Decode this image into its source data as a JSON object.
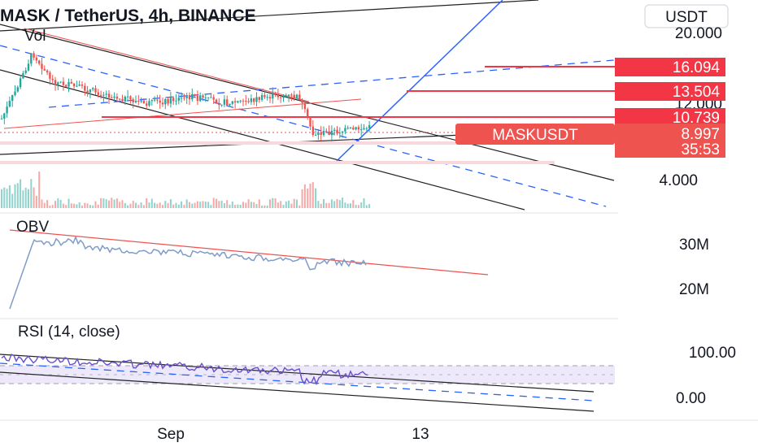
{
  "chart_data": {
    "type": "candlestick",
    "title": "MASK / TetherUS, 4h, BINANCE",
    "volume_label": "Vol",
    "currency_label": "USDT",
    "symbol_label": "MASKUSDT",
    "last_price": "8.997",
    "countdown": "35:53",
    "price_ticks": [
      "20.000",
      "12.000",
      "4.000"
    ],
    "x_ticks": [
      "Sep",
      "13"
    ],
    "horizontal_levels": [
      {
        "value": "16.094",
        "color": "#f23645"
      },
      {
        "value": "13.504",
        "color": "#f23645"
      },
      {
        "value": "10.739",
        "color": "#f23645"
      }
    ],
    "obv": {
      "label": "OBV",
      "ticks": [
        "30M",
        "20M"
      ],
      "color": "#7f9cc9"
    },
    "rsi": {
      "label": "RSI (14, close)",
      "ticks": [
        "100.00",
        "0.00"
      ],
      "color": "#6a4fc8"
    },
    "colors": {
      "up": "#26a69a",
      "down": "#ef5350",
      "trend_blue": "#2962ff",
      "trend_red": "#ef5350"
    }
  }
}
